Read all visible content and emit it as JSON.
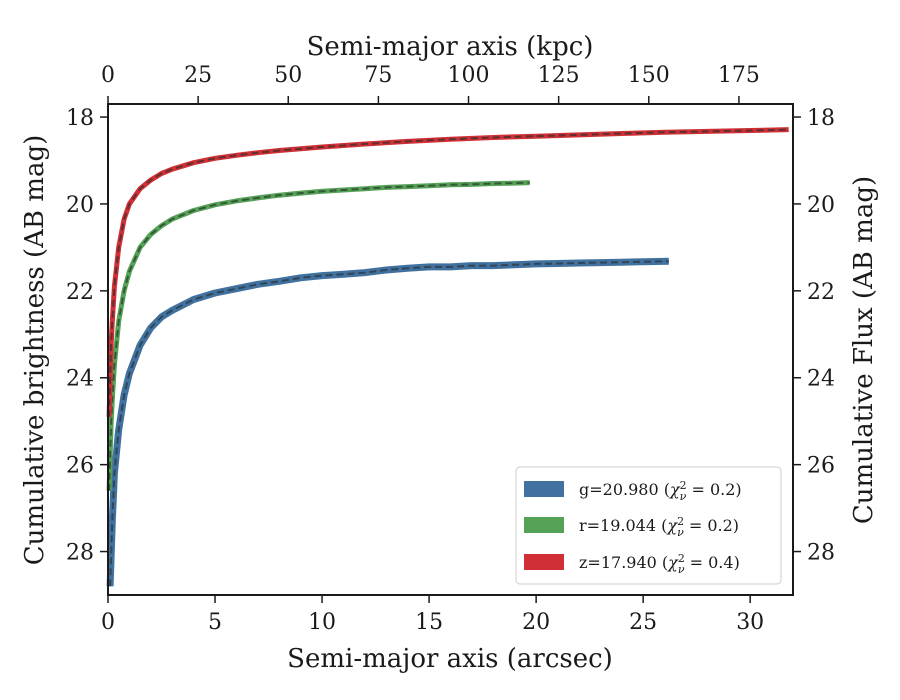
{
  "chart_data": {
    "type": "line",
    "xlabel": "Semi-major axis (arcsec)",
    "x2label": "Semi-major axis (kpc)",
    "ylabel": "Cumulative brightness (AB mag)",
    "y2label": "Cumulative Flux (AB mag)",
    "xlim": [
      0,
      32
    ],
    "x2lim": [
      0,
      190
    ],
    "ylim": [
      29,
      17.7
    ],
    "y_inverted": true,
    "x_ticks": [
      "0",
      "5",
      "10",
      "15",
      "20",
      "25",
      "30"
    ],
    "x2_ticks": [
      "0",
      "25",
      "50",
      "75",
      "100",
      "125",
      "150",
      "175"
    ],
    "y_ticks": [
      "18",
      "20",
      "22",
      "24",
      "26",
      "28"
    ],
    "y2_ticks": [
      "18",
      "20",
      "22",
      "24",
      "26",
      "28"
    ],
    "legend_position": "lower right",
    "series": [
      {
        "name": "g=20.980 (χ²ν = 0.2)",
        "legend_main": "g=20.980 (",
        "legend_chi": "χ",
        "legend_sup": "2",
        "legend_sub": "ν",
        "legend_rest": " = 0.2)",
        "color": "#41729f",
        "model_color": "#2f3d4a",
        "x": [
          0.1,
          0.2,
          0.3,
          0.5,
          0.75,
          1.0,
          1.5,
          2.0,
          2.5,
          3.0,
          4.0,
          5.0,
          6.0,
          7.0,
          8.0,
          9.0,
          10.0,
          11.0,
          12.0,
          13.0,
          14.0,
          15.0,
          16.0,
          17.0,
          18.0,
          19.0,
          20.0,
          21.0,
          22.0,
          23.0,
          24.0,
          25.0,
          26.2
        ],
        "y": [
          28.8,
          27.3,
          26.2,
          25.2,
          24.4,
          23.9,
          23.25,
          22.85,
          22.6,
          22.45,
          22.2,
          22.05,
          21.95,
          21.85,
          21.78,
          21.7,
          21.65,
          21.62,
          21.58,
          21.52,
          21.48,
          21.45,
          21.45,
          21.42,
          21.42,
          21.4,
          21.38,
          21.37,
          21.36,
          21.35,
          21.34,
          21.33,
          21.32
        ]
      },
      {
        "name": "r=19.044 (χ²ν = 0.2)",
        "legend_main": "r=19.044 (",
        "legend_chi": "χ",
        "legend_sup": "2",
        "legend_sub": "ν",
        "legend_rest": " = 0.2)",
        "color": "#55a257",
        "model_color": "#2f4a33",
        "x": [
          0.05,
          0.1,
          0.15,
          0.2,
          0.3,
          0.5,
          0.75,
          1.0,
          1.5,
          2.0,
          2.5,
          3.0,
          4.0,
          5.0,
          6.0,
          7.0,
          8.0,
          9.0,
          10.0,
          11.0,
          12.0,
          13.0,
          14.0,
          15.0,
          16.0,
          17.0,
          18.0,
          19.0,
          19.7
        ],
        "y": [
          26.6,
          25.8,
          25.0,
          24.5,
          23.7,
          22.7,
          22.0,
          21.55,
          21.0,
          20.7,
          20.5,
          20.35,
          20.15,
          20.02,
          19.93,
          19.86,
          19.8,
          19.75,
          19.71,
          19.68,
          19.65,
          19.62,
          19.6,
          19.58,
          19.56,
          19.55,
          19.53,
          19.52,
          19.51
        ]
      },
      {
        "name": "z=17.940 (χ²ν = 0.4)",
        "legend_main": "z=17.940 (",
        "legend_chi": "χ",
        "legend_sup": "2",
        "legend_sub": "ν",
        "legend_rest": " = 0.4)",
        "color": "#d03035",
        "model_color": "#4a2f30",
        "x": [
          0.05,
          0.1,
          0.15,
          0.2,
          0.3,
          0.5,
          0.75,
          1.0,
          1.5,
          2.0,
          2.5,
          3.0,
          4.0,
          5.0,
          6.0,
          7.0,
          8.0,
          9.0,
          10.0,
          12.0,
          14.0,
          16.0,
          18.0,
          20.0,
          22.0,
          24.0,
          26.0,
          28.0,
          30.0,
          31.8
        ],
        "y": [
          24.9,
          24.0,
          23.2,
          22.7,
          21.9,
          21.0,
          20.35,
          20.0,
          19.65,
          19.45,
          19.3,
          19.2,
          19.05,
          18.95,
          18.88,
          18.82,
          18.77,
          18.73,
          18.69,
          18.62,
          18.56,
          18.51,
          18.47,
          18.44,
          18.41,
          18.38,
          18.35,
          18.33,
          18.31,
          18.29
        ]
      }
    ]
  }
}
